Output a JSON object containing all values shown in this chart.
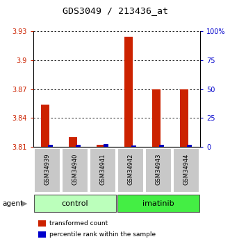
{
  "title": "GDS3049 / 213436_at",
  "categories": [
    "GSM34939",
    "GSM34940",
    "GSM34941",
    "GSM34942",
    "GSM34943",
    "GSM34944"
  ],
  "red_values": [
    3.854,
    3.82,
    3.812,
    3.924,
    3.87,
    3.87
  ],
  "blue_pct": [
    2.0,
    2.0,
    2.5,
    1.5,
    2.0,
    2.0
  ],
  "ymin": 3.81,
  "ymax": 3.93,
  "yticks": [
    3.81,
    3.84,
    3.87,
    3.9,
    3.93
  ],
  "ytick_labels": [
    "3.81",
    "3.84",
    "3.87",
    "3.9",
    "3.93"
  ],
  "right_yticks": [
    0,
    25,
    50,
    75,
    100
  ],
  "right_ytick_labels": [
    "0",
    "25",
    "50",
    "75",
    "100%"
  ],
  "groups": [
    {
      "label": "control",
      "indices": [
        0,
        1,
        2
      ],
      "color": "#bbffbb"
    },
    {
      "label": "imatinib",
      "indices": [
        3,
        4,
        5
      ],
      "color": "#44ee44"
    }
  ],
  "agent_label": "agent",
  "legend_items": [
    {
      "color": "#cc2200",
      "label": "transformed count"
    },
    {
      "color": "#0000cc",
      "label": "percentile rank within the sample"
    }
  ],
  "red_color": "#cc2200",
  "blue_color": "#0000bb",
  "left_tick_color": "#cc2200",
  "right_tick_color": "#0000cc",
  "title_fontsize": 9.5,
  "tick_fontsize": 7,
  "sample_label_fontsize": 6,
  "group_label_fontsize": 8,
  "legend_fontsize": 6.5,
  "agent_fontsize": 7.5
}
